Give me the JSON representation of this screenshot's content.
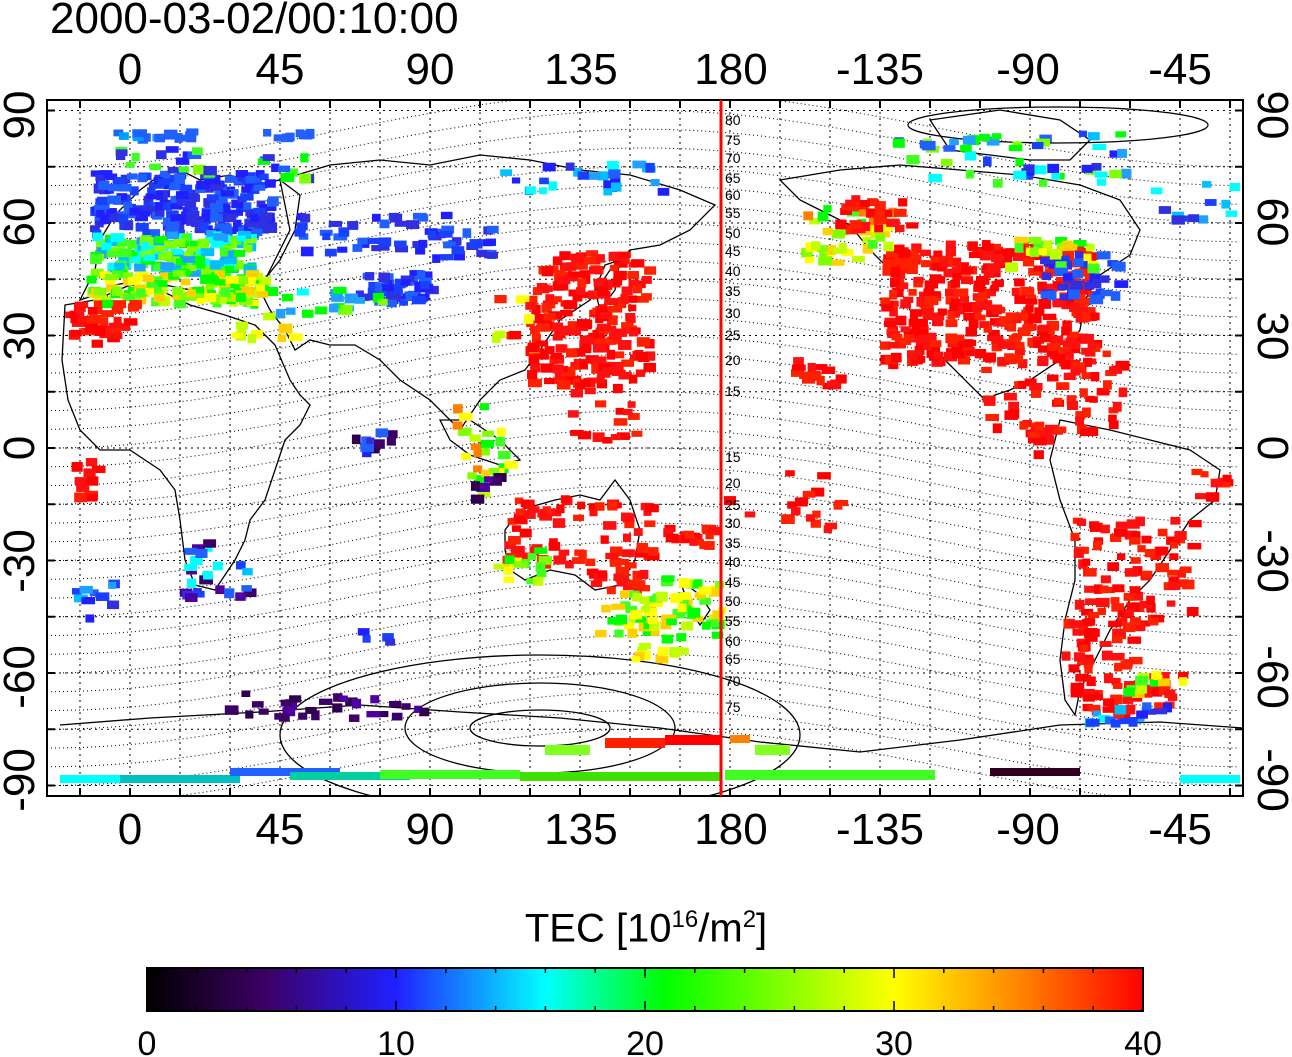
{
  "title": "2000-03-02/00:10:00",
  "map": {
    "lon_ticks": [
      "0",
      "45",
      "90",
      "135",
      "180",
      "-135",
      "-90",
      "-45"
    ],
    "lat_ticks": [
      "90",
      "60",
      "30",
      "0",
      "-30",
      "-60",
      "-90"
    ],
    "mlat_labels": [
      "80",
      "75",
      "70",
      "65",
      "60",
      "55",
      "50",
      "45",
      "40",
      "35",
      "30",
      "25",
      "20",
      "15",
      "15",
      "20",
      "25",
      "30",
      "35",
      "40",
      "45",
      "50",
      "55",
      "60",
      "65",
      "70",
      "75"
    ],
    "terminator_color": "#ff0000"
  },
  "colorbar": {
    "label_prefix": "TEC  [10",
    "label_exp": "16",
    "label_mid": "/m",
    "label_exp2": "2",
    "label_suffix": "]",
    "min": 0,
    "max": 40,
    "ticks": [
      "0",
      "10",
      "20",
      "30",
      "40"
    ],
    "colors": [
      "#000000",
      "#3d0066",
      "#2020ff",
      "#00ffff",
      "#00ff00",
      "#ffff00",
      "#ff8000",
      "#ff0000"
    ]
  }
}
